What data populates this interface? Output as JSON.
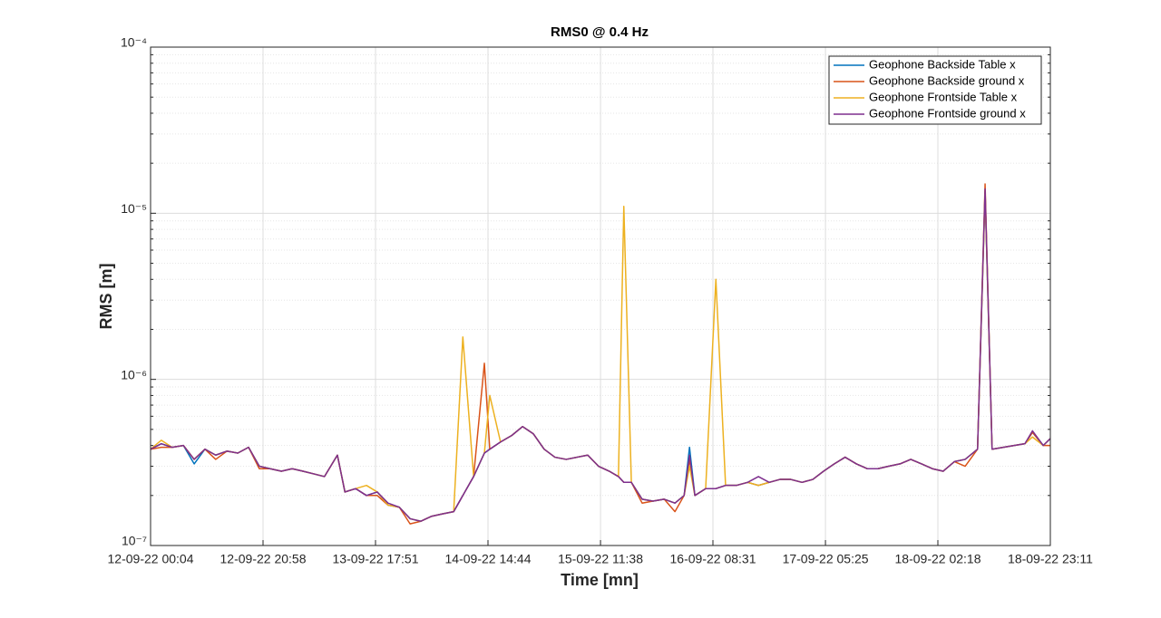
{
  "chart_data": {
    "type": "line",
    "title": "RMS0 @ 0.4 Hz",
    "xlabel": "Time [mn]",
    "ylabel": "RMS [m]",
    "log_y": true,
    "grid": true,
    "minor_grid": true,
    "legend": "northeast",
    "xlim": [
      0,
      167.12
    ],
    "xticks": [
      {
        "value": 0,
        "label": "12-09-22 00:04"
      },
      {
        "value": 20.89,
        "label": "12-09-22 20:58"
      },
      {
        "value": 41.78,
        "label": "13-09-22 17:51"
      },
      {
        "value": 62.67,
        "label": "14-09-22 14:44"
      },
      {
        "value": 83.57,
        "label": "15-09-22 11:38"
      },
      {
        "value": 104.45,
        "label": "16-09-22 08:31"
      },
      {
        "value": 125.35,
        "label": "17-09-22 05:25"
      },
      {
        "value": 146.23,
        "label": "18-09-22 02:18"
      },
      {
        "value": 167.12,
        "label": "18-09-22 23:11"
      }
    ],
    "ylim": [
      1e-07,
      0.0001
    ],
    "yticks": [
      {
        "value": 1e-07,
        "label": "10⁻⁷"
      },
      {
        "value": 1e-06,
        "label": "10⁻⁶"
      },
      {
        "value": 1e-05,
        "label": "10⁻⁵"
      },
      {
        "value": 0.0001,
        "label": "10⁻⁴"
      }
    ],
    "x": [
      0,
      2.0,
      4.0,
      6.1,
      8.1,
      10.1,
      12.1,
      14.2,
      16.2,
      18.2,
      20.2,
      22.2,
      24.3,
      26.3,
      28.3,
      30.3,
      32.3,
      34.7,
      36.1,
      38.1,
      40.1,
      42.1,
      44.1,
      46.2,
      48.2,
      50.2,
      52.2,
      54.2,
      56.3,
      58.0,
      60.0,
      62.0,
      63.0,
      65.0,
      67.1,
      69.1,
      71.1,
      73.1,
      75.1,
      77.2,
      79.2,
      81.2,
      83.2,
      85.2,
      86.9,
      87.9,
      89.3,
      91.3,
      93.3,
      95.4,
      97.4,
      99.1,
      100.1,
      101.1,
      103.1,
      105.0,
      106.8,
      108.8,
      110.9,
      112.9,
      114.9,
      116.9,
      118.9,
      121.0,
      123.0,
      125.0,
      127.0,
      129.0,
      131.1,
      133.1,
      135.1,
      137.1,
      139.2,
      141.2,
      143.2,
      145.2,
      147.2,
      149.3,
      151.3,
      153.6,
      155.0,
      156.3,
      158.4,
      160.4,
      162.4,
      163.8,
      165.8,
      167.1
    ],
    "series": [
      {
        "name": "Geophone Backside Table x",
        "color": "#0072BD",
        "values": [
          3.8e-07,
          4.1e-07,
          3.9e-07,
          4e-07,
          3.1e-07,
          3.8e-07,
          3.5e-07,
          3.7e-07,
          3.6e-07,
          3.9e-07,
          3e-07,
          2.9e-07,
          2.8e-07,
          2.9e-07,
          2.8e-07,
          2.7e-07,
          2.6e-07,
          3.5e-07,
          2.1e-07,
          2.2e-07,
          2e-07,
          2.1e-07,
          1.75e-07,
          1.7e-07,
          1.45e-07,
          1.4e-07,
          1.5e-07,
          1.55e-07,
          1.6e-07,
          2e-07,
          2.6e-07,
          3.6e-07,
          3.8e-07,
          4.2e-07,
          4.6e-07,
          5.2e-07,
          4.7e-07,
          3.8e-07,
          3.4e-07,
          3.3e-07,
          3.4e-07,
          3.5e-07,
          3e-07,
          2.8e-07,
          2.6e-07,
          2.4e-07,
          2.4e-07,
          1.9e-07,
          1.85e-07,
          1.9e-07,
          1.8e-07,
          2e-07,
          3.9e-07,
          2e-07,
          2.2e-07,
          2.2e-07,
          2.3e-07,
          2.3e-07,
          2.4e-07,
          2.3e-07,
          2.4e-07,
          2.5e-07,
          2.5e-07,
          2.4e-07,
          2.5e-07,
          2.8e-07,
          3.1e-07,
          3.4e-07,
          3.1e-07,
          2.9e-07,
          2.9e-07,
          3e-07,
          3.1e-07,
          3.3e-07,
          3.1e-07,
          2.9e-07,
          2.8e-07,
          3.2e-07,
          3.3e-07,
          3.8e-07,
          1.35e-05,
          3.8e-07,
          3.9e-07,
          4e-07,
          4.1e-07,
          4.8e-07,
          4e-07,
          4.4e-07
        ]
      },
      {
        "name": "Geophone Backside ground x",
        "color": "#D95319",
        "values": [
          3.8e-07,
          3.9e-07,
          3.9e-07,
          4e-07,
          3.3e-07,
          3.8e-07,
          3.3e-07,
          3.7e-07,
          3.6e-07,
          3.9e-07,
          2.9e-07,
          2.9e-07,
          2.8e-07,
          2.9e-07,
          2.8e-07,
          2.7e-07,
          2.6e-07,
          3.5e-07,
          2.1e-07,
          2.2e-07,
          2e-07,
          2e-07,
          1.75e-07,
          1.7e-07,
          1.35e-07,
          1.4e-07,
          1.5e-07,
          1.55e-07,
          1.6e-07,
          2e-07,
          2.6e-07,
          1.25e-06,
          3.8e-07,
          4.2e-07,
          4.6e-07,
          5.2e-07,
          4.7e-07,
          3.8e-07,
          3.4e-07,
          3.3e-07,
          3.4e-07,
          3.5e-07,
          3e-07,
          2.8e-07,
          2.6e-07,
          2.4e-07,
          2.4e-07,
          1.8e-07,
          1.85e-07,
          1.9e-07,
          1.6e-07,
          2e-07,
          3.3e-07,
          2e-07,
          2.2e-07,
          2.2e-07,
          2.3e-07,
          2.3e-07,
          2.4e-07,
          2.3e-07,
          2.4e-07,
          2.5e-07,
          2.5e-07,
          2.4e-07,
          2.5e-07,
          2.8e-07,
          3.1e-07,
          3.4e-07,
          3.1e-07,
          2.9e-07,
          2.9e-07,
          3e-07,
          3.1e-07,
          3.3e-07,
          3.1e-07,
          2.9e-07,
          2.8e-07,
          3.2e-07,
          3e-07,
          3.8e-07,
          1.5e-05,
          3.8e-07,
          3.9e-07,
          4e-07,
          4.1e-07,
          4.8e-07,
          4e-07,
          4e-07
        ]
      },
      {
        "name": "Geophone Frontside Table x",
        "color": "#EDB120",
        "values": [
          3.8e-07,
          4.3e-07,
          3.9e-07,
          4e-07,
          3.3e-07,
          3.8e-07,
          3.5e-07,
          3.7e-07,
          3.6e-07,
          3.9e-07,
          3e-07,
          2.9e-07,
          2.8e-07,
          2.9e-07,
          2.8e-07,
          2.7e-07,
          2.6e-07,
          3.5e-07,
          2.1e-07,
          2.2e-07,
          2.3e-07,
          2.1e-07,
          1.75e-07,
          1.7e-07,
          1.45e-07,
          1.4e-07,
          1.5e-07,
          1.55e-07,
          1.6e-07,
          1.8e-06,
          2.6e-07,
          3.6e-07,
          8e-07,
          4.2e-07,
          4.6e-07,
          5.2e-07,
          4.7e-07,
          3.8e-07,
          3.4e-07,
          3.3e-07,
          3.4e-07,
          3.5e-07,
          3e-07,
          2.8e-07,
          2.6e-07,
          1.1e-05,
          2.4e-07,
          1.9e-07,
          1.85e-07,
          1.9e-07,
          1.8e-07,
          2e-07,
          3e-07,
          2e-07,
          2.2e-07,
          4e-06,
          2.3e-07,
          2.3e-07,
          2.4e-07,
          2.3e-07,
          2.4e-07,
          2.5e-07,
          2.5e-07,
          2.4e-07,
          2.5e-07,
          2.8e-07,
          3.1e-07,
          3.4e-07,
          3.1e-07,
          2.9e-07,
          2.9e-07,
          3e-07,
          3.1e-07,
          3.3e-07,
          3.1e-07,
          2.9e-07,
          2.8e-07,
          3.2e-07,
          3.3e-07,
          3.8e-07,
          1.3e-05,
          3.8e-07,
          3.9e-07,
          4e-07,
          4.1e-07,
          4.5e-07,
          4e-07,
          4.4e-07
        ]
      },
      {
        "name": "Geophone Frontside ground x",
        "color": "#7E2F8E",
        "values": [
          3.8e-07,
          4.1e-07,
          3.9e-07,
          4e-07,
          3.3e-07,
          3.8e-07,
          3.5e-07,
          3.7e-07,
          3.6e-07,
          3.9e-07,
          3e-07,
          2.9e-07,
          2.8e-07,
          2.9e-07,
          2.8e-07,
          2.7e-07,
          2.6e-07,
          3.5e-07,
          2.1e-07,
          2.2e-07,
          2e-07,
          2.1e-07,
          1.8e-07,
          1.7e-07,
          1.45e-07,
          1.4e-07,
          1.5e-07,
          1.55e-07,
          1.6e-07,
          2e-07,
          2.6e-07,
          3.6e-07,
          3.8e-07,
          4.2e-07,
          4.6e-07,
          5.2e-07,
          4.7e-07,
          3.8e-07,
          3.4e-07,
          3.3e-07,
          3.4e-07,
          3.5e-07,
          3e-07,
          2.8e-07,
          2.6e-07,
          2.4e-07,
          2.4e-07,
          1.9e-07,
          1.85e-07,
          1.9e-07,
          1.8e-07,
          2e-07,
          3.5e-07,
          2e-07,
          2.2e-07,
          2.2e-07,
          2.3e-07,
          2.3e-07,
          2.4e-07,
          2.6e-07,
          2.4e-07,
          2.5e-07,
          2.5e-07,
          2.4e-07,
          2.5e-07,
          2.8e-07,
          3.1e-07,
          3.4e-07,
          3.1e-07,
          2.9e-07,
          2.9e-07,
          3e-07,
          3.1e-07,
          3.3e-07,
          3.1e-07,
          2.9e-07,
          2.8e-07,
          3.2e-07,
          3.3e-07,
          3.8e-07,
          1.4e-05,
          3.8e-07,
          3.9e-07,
          4e-07,
          4.1e-07,
          4.9e-07,
          4e-07,
          4.4e-07
        ]
      }
    ]
  }
}
